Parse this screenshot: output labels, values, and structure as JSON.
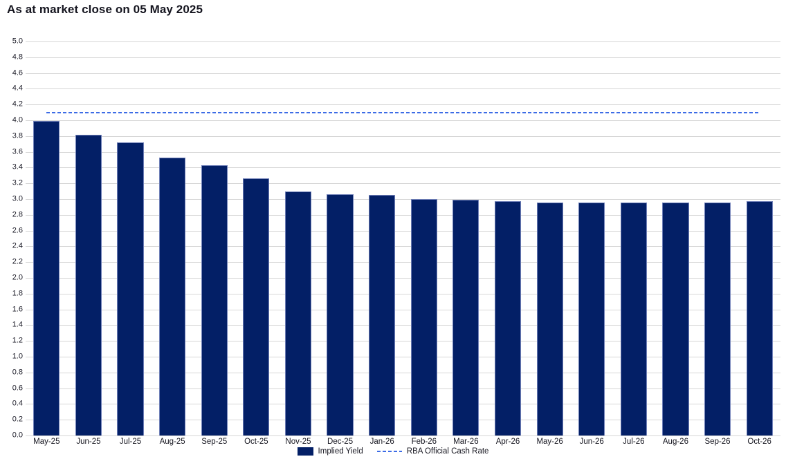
{
  "chart_data": {
    "type": "bar",
    "title": "As at market close on 05 May 2025",
    "categories": [
      "May-25",
      "Jun-25",
      "Jul-25",
      "Aug-25",
      "Sep-25",
      "Oct-25",
      "Nov-25",
      "Dec-25",
      "Jan-26",
      "Feb-26",
      "Mar-26",
      "Apr-26",
      "May-26",
      "Jun-26",
      "Jul-26",
      "Aug-26",
      "Sep-26",
      "Oct-26"
    ],
    "series": [
      {
        "name": "Implied Yield",
        "type": "bar",
        "values": [
          3.99,
          3.82,
          3.72,
          3.53,
          3.43,
          3.26,
          3.1,
          3.06,
          3.05,
          3.0,
          2.99,
          2.97,
          2.96,
          2.96,
          2.96,
          2.96,
          2.96,
          2.97
        ]
      },
      {
        "name": "RBA Official Cash Rate",
        "type": "line",
        "style": "dashed",
        "value": 4.1
      }
    ],
    "xlabel": "",
    "ylabel": "",
    "ylim": [
      0.0,
      5.0
    ],
    "ytick_step": 0.2,
    "ytick_format_decimals": 1,
    "grid": true,
    "legend_position": "bottom-center",
    "colors": {
      "bar_fill": "#031f66",
      "bar_border": "#7080b8",
      "cash_rate_line": "#3d6ce6",
      "gridline": "#d6d6d6",
      "text": "#15151f"
    }
  }
}
